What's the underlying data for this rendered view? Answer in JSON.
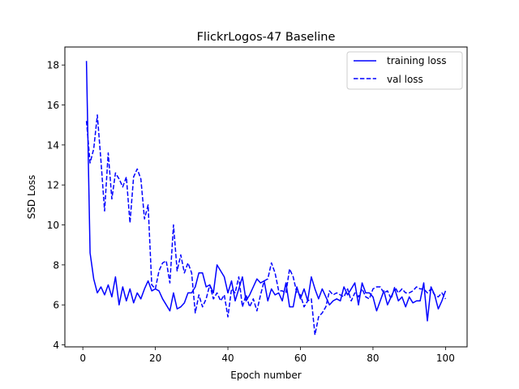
{
  "chart_data": {
    "type": "line",
    "title": "FlickrLogos-47 Baseline",
    "xlabel": "Epoch number",
    "ylabel": "SSD Loss",
    "xlim": [
      -4.95,
      105.95
    ],
    "ylim": [
      3.9,
      18.9
    ],
    "xticks": [
      0,
      20,
      40,
      60,
      80,
      100
    ],
    "yticks": [
      4,
      6,
      8,
      10,
      12,
      14,
      16,
      18
    ],
    "grid": false,
    "legend_position": "top-right",
    "x": [
      1,
      2,
      3,
      4,
      5,
      6,
      7,
      8,
      9,
      10,
      11,
      12,
      13,
      14,
      15,
      16,
      17,
      18,
      19,
      20,
      21,
      22,
      23,
      24,
      25,
      26,
      27,
      28,
      29,
      30,
      31,
      32,
      33,
      34,
      35,
      36,
      37,
      38,
      39,
      40,
      41,
      42,
      43,
      44,
      45,
      46,
      47,
      48,
      49,
      50,
      51,
      52,
      53,
      54,
      55,
      56,
      57,
      58,
      59,
      60,
      61,
      62,
      63,
      64,
      65,
      66,
      67,
      68,
      69,
      70,
      71,
      72,
      73,
      74,
      75,
      76,
      77,
      78,
      79,
      80,
      81,
      82,
      83,
      84,
      85,
      86,
      87,
      88,
      89,
      90,
      91,
      92,
      93,
      94,
      95,
      96,
      97,
      98,
      99,
      100
    ],
    "series": [
      {
        "name": "training loss",
        "color": "#0000ff",
        "linestyle": "solid",
        "values": [
          18.2,
          8.6,
          7.3,
          6.6,
          6.9,
          6.5,
          7.0,
          6.4,
          7.4,
          6.0,
          6.9,
          6.2,
          6.8,
          6.1,
          6.6,
          6.3,
          6.8,
          7.2,
          6.7,
          6.8,
          6.7,
          6.3,
          6.0,
          5.7,
          6.6,
          5.8,
          5.9,
          6.1,
          6.6,
          6.6,
          6.9,
          7.6,
          7.6,
          6.9,
          7.0,
          6.6,
          8.0,
          7.7,
          7.4,
          6.6,
          7.2,
          6.2,
          6.8,
          7.4,
          6.2,
          6.5,
          6.9,
          7.3,
          7.1,
          7.2,
          6.2,
          6.8,
          6.5,
          6.6,
          6.2,
          7.1,
          5.9,
          5.9,
          6.9,
          6.3,
          6.8,
          6.2,
          7.4,
          6.8,
          6.3,
          6.8,
          6.4,
          6.0,
          6.2,
          6.3,
          6.2,
          6.9,
          6.5,
          6.8,
          7.1,
          6.0,
          7.1,
          6.6,
          6.6,
          6.4,
          5.7,
          6.2,
          6.7,
          6.0,
          6.4,
          6.8,
          6.2,
          6.4,
          5.9,
          6.4,
          6.1,
          6.2,
          6.2,
          7.1,
          5.2,
          6.9,
          6.5,
          5.8,
          6.2,
          6.7
        ]
      },
      {
        "name": "val loss",
        "color": "#0000ff",
        "linestyle": "dashed",
        "values": [
          15.2,
          13.1,
          13.8,
          15.5,
          13.2,
          10.7,
          13.6,
          11.3,
          12.6,
          12.3,
          11.9,
          12.4,
          10.1,
          12.4,
          12.8,
          12.3,
          10.3,
          11.0,
          7.0,
          6.8,
          7.7,
          8.1,
          8.2,
          7.1,
          10.0,
          7.7,
          8.5,
          7.6,
          8.1,
          7.6,
          5.6,
          6.5,
          5.9,
          6.3,
          7.0,
          6.3,
          6.6,
          6.2,
          6.5,
          5.4,
          6.8,
          6.6,
          7.4,
          5.9,
          6.5,
          5.9,
          6.3,
          5.7,
          6.5,
          7.2,
          7.3,
          8.1,
          7.6,
          6.7,
          6.7,
          6.6,
          7.8,
          7.4,
          6.6,
          6.5,
          5.9,
          6.2,
          6.3,
          4.5,
          5.4,
          5.6,
          5.9,
          6.7,
          6.5,
          6.6,
          6.5,
          6.4,
          6.8,
          6.2,
          6.6,
          6.4,
          6.8,
          6.4,
          6.3,
          6.8,
          6.9,
          6.9,
          6.6,
          6.7,
          6.3,
          6.9,
          6.6,
          6.8,
          6.6,
          6.6,
          6.7,
          6.9,
          6.8,
          6.8,
          6.6,
          6.8,
          6.5,
          6.4,
          6.6,
          6.3
        ]
      }
    ]
  }
}
